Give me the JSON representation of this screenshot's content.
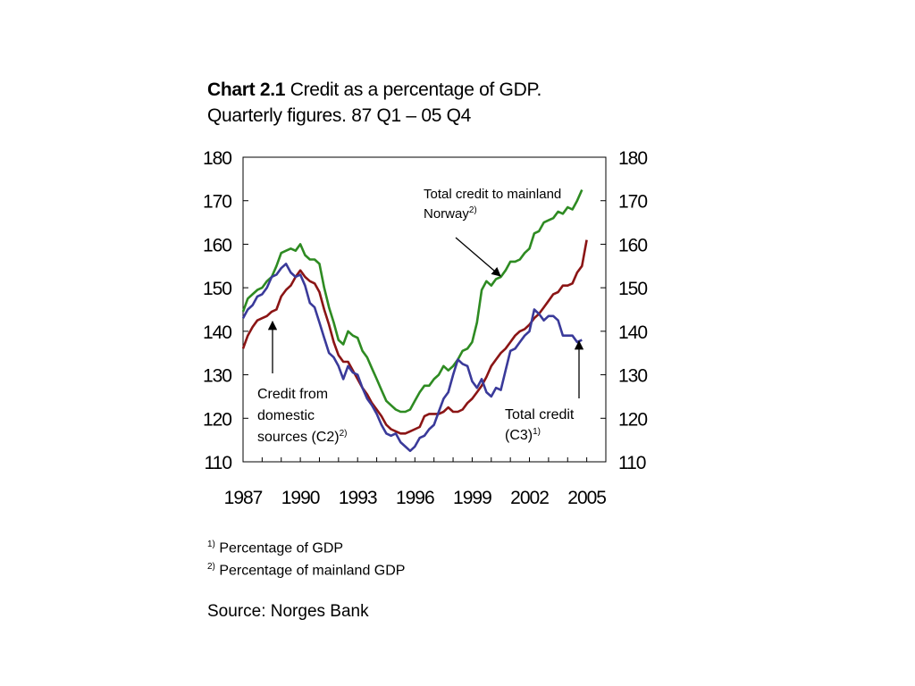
{
  "title": {
    "bold": "Chart 2.1",
    "rest": " Credit as a percentage of GDP.",
    "line2": "Quarterly figures. 87 Q1 – 05 Q4"
  },
  "footnotes": [
    {
      "mark": "1)",
      "text": " Percentage of GDP"
    },
    {
      "mark": "2)",
      "text": " Percentage of mainland GDP"
    }
  ],
  "source": "Source: Norges Bank",
  "chart_data": {
    "type": "line",
    "x_start": 1987.0,
    "x_step": 0.25,
    "xlim": [
      1987.0,
      2006.0
    ],
    "ylim": [
      110,
      180
    ],
    "y_ticks": [
      110,
      120,
      130,
      140,
      150,
      160,
      170,
      180
    ],
    "x_tick_labels": [
      "1987",
      "1990",
      "1993",
      "1996",
      "1999",
      "2002",
      "2005"
    ],
    "grid": false,
    "annotations": [
      {
        "lines": [
          "Total credit to mainland",
          "Norway"
        ],
        "sup": "2)",
        "series": "green"
      },
      {
        "lines": [
          "Credit from",
          "domestic",
          "sources (C2)"
        ],
        "sup": "2)",
        "series": "red"
      },
      {
        "lines": [
          "Total credit",
          "(C3)"
        ],
        "sup": "1)",
        "series": "blue"
      }
    ],
    "series": [
      {
        "color": "#2e8b22",
        "values": [
          144.5,
          147.5,
          148.5,
          149.5,
          150,
          151.5,
          152.5,
          155,
          158,
          158.5,
          159,
          158.5,
          160,
          157.5,
          156.5,
          156.5,
          155.5,
          150,
          145.5,
          142,
          138,
          137,
          140,
          139,
          138.5,
          135.5,
          134,
          131.5,
          129,
          126.5,
          124,
          123,
          122,
          121.5,
          121.5,
          122,
          124,
          126,
          127.5,
          127.5,
          129,
          130,
          132,
          131,
          132,
          133.5,
          135.5,
          136,
          137.5,
          142,
          149.5,
          151.5,
          150.5,
          152,
          152.5,
          154,
          156,
          156,
          156.5,
          158,
          159,
          162.5,
          163,
          165,
          165.5,
          166,
          167.5,
          167,
          168.5,
          168,
          170,
          172.5
        ]
      },
      {
        "color": "#8b1515",
        "values": [
          136,
          139,
          141,
          142.5,
          143,
          143.5,
          144.5,
          145,
          148,
          149.5,
          150.5,
          152.5,
          154,
          152.5,
          151.5,
          151,
          149,
          145,
          141.5,
          137.5,
          134.5,
          133,
          133,
          131,
          129,
          127,
          125.5,
          123.5,
          122,
          120.5,
          118.5,
          117.5,
          117,
          116.5,
          116.5,
          117,
          117.5,
          118,
          120.5,
          121,
          121,
          121,
          121.5,
          122.5,
          121.5,
          121.5,
          122,
          123.5,
          124.5,
          126,
          127.5,
          129.5,
          132,
          133.5,
          135,
          136,
          137.5,
          139,
          140,
          140.5,
          141.5,
          143,
          144,
          145.5,
          147,
          148.5,
          149,
          150.5,
          150.5,
          151,
          153.5,
          155,
          161
        ]
      },
      {
        "color": "#3a3a9a",
        "values": [
          143,
          145,
          146,
          148,
          148.5,
          150,
          152.5,
          153,
          154.5,
          155.5,
          153.5,
          152.5,
          153,
          150.5,
          146.5,
          145.5,
          142,
          138.5,
          135,
          134,
          132,
          129,
          132,
          130.5,
          130,
          127,
          124.5,
          123,
          121,
          118.5,
          116.5,
          116,
          116.5,
          114.5,
          113.5,
          112.5,
          113.5,
          115.5,
          116,
          117.5,
          118.5,
          121.5,
          124.5,
          126,
          130,
          133.5,
          132.5,
          132,
          128.5,
          127,
          129,
          126,
          125,
          127,
          126.5,
          131,
          135.5,
          136,
          137.5,
          139,
          140,
          145,
          144,
          142.5,
          143.5,
          143.5,
          142.5,
          139,
          139,
          139,
          137.5,
          138
        ]
      }
    ]
  }
}
